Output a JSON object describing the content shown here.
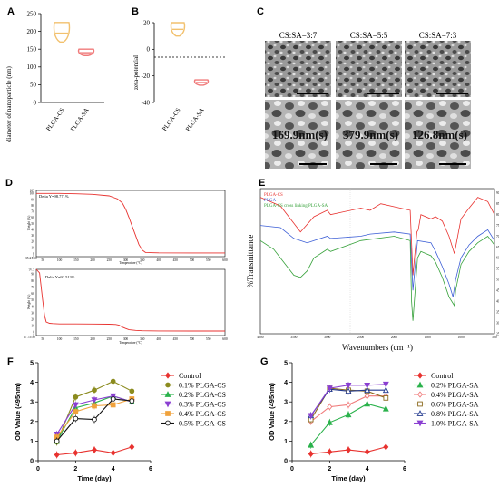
{
  "panels": {
    "A": {
      "label": "A",
      "ylabel": "diameter of nanoparticle (nm)",
      "yticks": [
        "0",
        "50",
        "100",
        "150",
        "200",
        "250"
      ],
      "categories": [
        "PLGA-CS",
        "PLGA-SA"
      ]
    },
    "B": {
      "label": "B",
      "ylabel": "zeta-potential",
      "yticks": [
        "20",
        "0",
        "-20",
        "-40"
      ],
      "categories": [
        "PLGA-CS",
        "PLGA-SA"
      ]
    },
    "C": {
      "label": "C",
      "headers": [
        "CS:SA=3:7",
        "CS:SA=5:5",
        "CS:SA=7:3"
      ],
      "pore_sizes": [
        "169.9nm(s)",
        "379.9nm(s)",
        "126.8nm(s)"
      ]
    },
    "D": {
      "label": "D",
      "top_legend": "Delta Y=98.771%",
      "bottom_legend": "Delta Y=92.513%",
      "ylabel": "Weight (%)",
      "xlabel": "Temperature (°C)",
      "top_y_ticks": [
        "105",
        "100",
        "90",
        "80",
        "70",
        "60",
        "50",
        "40",
        "30",
        "20",
        "10",
        "0",
        "-5"
      ],
      "bottom_y_ticks": [
        "97.5",
        "90",
        "80",
        "70",
        "60",
        "50",
        "40",
        "30",
        "20",
        "10",
        "0",
        "-5"
      ],
      "top_corner": "35.21/50",
      "bottom_corner": "37.75/50",
      "x_ticks": [
        "50",
        "100",
        "150",
        "200",
        "250",
        "300",
        "350",
        "400",
        "450",
        "500",
        "550",
        "600"
      ]
    },
    "E": {
      "label": "E",
      "ylabel": "%Transmittance",
      "xlabel": "Wavenumbers (cm⁻¹)",
      "xticks": [
        "4000",
        "3500",
        "3000",
        "2500",
        "2000",
        "1500",
        "1000",
        "500"
      ],
      "yticks": [
        "90",
        "85",
        "80",
        "75",
        "70",
        "65",
        "60",
        "55",
        "50",
        "45",
        "40",
        "35",
        "30",
        "25"
      ],
      "legend": [
        {
          "name": "PLGA-CS",
          "color": "#e8322f"
        },
        {
          "name": "PLGA",
          "color": "#3d5fd6"
        },
        {
          "name": "PLGA-CS cross linking PLGA-SA",
          "color": "#36a13a"
        }
      ]
    },
    "F": {
      "label": "F"
    },
    "G": {
      "label": "G"
    }
  },
  "chart_data": [
    {
      "type": "violin",
      "panel": "A",
      "ylabel": "diameter of nanoparticle (nm)",
      "ylim": [
        0,
        250
      ],
      "categories": [
        "PLGA-CS",
        "PLGA-SA"
      ],
      "ranges": [
        [
          170,
          225
        ],
        [
          132,
          150
        ]
      ],
      "medians": [
        195,
        140
      ],
      "colors": [
        "#f2c16e",
        "#f07a7a"
      ]
    },
    {
      "type": "violin",
      "panel": "B",
      "ylabel": "zeta-potential",
      "ylim": [
        -40,
        25
      ],
      "categories": [
        "PLGA-CS",
        "PLGA-SA"
      ],
      "ranges": [
        [
          10,
          20
        ],
        [
          -27,
          -23
        ]
      ],
      "medians": [
        15,
        -25
      ],
      "colors": [
        "#f2c16e",
        "#f07a7a"
      ]
    },
    {
      "type": "line",
      "panel": "D-top",
      "xlabel": "Temperature (°C)",
      "ylabel": "Weight (%)",
      "xlim": [
        30,
        600
      ],
      "ylim": [
        -5,
        105
      ],
      "x": [
        30,
        100,
        150,
        200,
        250,
        275,
        290,
        300,
        310,
        320,
        330,
        340,
        350,
        360,
        400,
        500,
        600
      ],
      "y": [
        100,
        100,
        99.5,
        98.5,
        96,
        91,
        84,
        74,
        60,
        45,
        30,
        15,
        6,
        2,
        1.3,
        1.2,
        1.2
      ]
    },
    {
      "type": "line",
      "panel": "D-bottom",
      "xlabel": "Temperature (°C)",
      "ylabel": "Weight (%)",
      "xlim": [
        30,
        600
      ],
      "ylim": [
        -5,
        97.5
      ],
      "x": [
        30,
        40,
        48,
        55,
        60,
        70,
        80,
        100,
        150,
        200,
        250,
        270,
        280,
        290,
        300,
        310,
        330,
        350,
        400,
        500,
        600
      ],
      "y": [
        97.5,
        92,
        55,
        26,
        16,
        14,
        13.5,
        13,
        13,
        12.8,
        12.5,
        12.2,
        11,
        8,
        6,
        4,
        3,
        2.5,
        2.2,
        2,
        2
      ]
    },
    {
      "type": "line",
      "panel": "E",
      "xlabel": "Wavenumbers (cm⁻¹)",
      "ylabel": "%Transmittance",
      "xlim": [
        4000,
        500
      ],
      "ylim": [
        25,
        92
      ],
      "series": [
        {
          "name": "PLGA-CS",
          "x": [
            4000,
            3700,
            3500,
            3400,
            3200,
            3000,
            2950,
            2500,
            2360,
            2200,
            1760,
            1720,
            1660,
            1640,
            1600,
            1450,
            1380,
            1280,
            1180,
            1100,
            1080,
            1000,
            880,
            750,
            600,
            500
          ],
          "y": [
            88,
            84,
            76,
            72,
            79,
            82,
            80,
            83,
            82,
            85,
            82,
            52,
            72,
            73,
            80,
            78,
            79,
            77,
            70,
            62,
            65,
            78,
            83,
            88,
            86,
            80
          ]
        },
        {
          "name": "PLGA",
          "x": [
            4000,
            3700,
            3500,
            3300,
            3000,
            2950,
            2500,
            2360,
            2000,
            1760,
            1720,
            1650,
            1450,
            1380,
            1280,
            1180,
            1120,
            1080,
            1000,
            880,
            750,
            600,
            500
          ],
          "y": [
            75,
            74,
            69,
            67,
            70,
            69,
            70,
            71,
            72,
            71,
            45,
            68,
            67,
            63,
            56,
            48,
            42,
            50,
            60,
            66,
            70,
            73,
            68
          ]
        },
        {
          "name": "PLGA-CS cross linking PLGA-SA",
          "x": [
            4000,
            3800,
            3600,
            3500,
            3400,
            3300,
            3200,
            3000,
            2950,
            2500,
            2000,
            1760,
            1740,
            1720,
            1650,
            1600,
            1450,
            1380,
            1280,
            1180,
            1100,
            1080,
            1000,
            880,
            750,
            600,
            500
          ],
          "y": [
            68,
            64,
            56,
            52,
            51,
            54,
            60,
            64,
            63,
            68,
            70,
            68,
            40,
            31,
            60,
            63,
            61,
            58,
            51,
            42,
            38,
            45,
            57,
            63,
            67,
            70,
            66
          ]
        }
      ],
      "legend": "top-left"
    },
    {
      "type": "line",
      "panel": "F",
      "xlabel": "Time (day)",
      "ylabel": "OD Value (495nm)",
      "xlim": [
        0,
        6
      ],
      "ylim": [
        0,
        5
      ],
      "x": [
        1,
        2,
        3,
        4,
        5
      ],
      "series": [
        {
          "name": "Control",
          "color": "#e8322f",
          "marker": "diamond",
          "y": [
            0.3,
            0.4,
            0.55,
            0.4,
            0.7
          ]
        },
        {
          "name": "0.1% PLGA-CS",
          "color": "#8b8b1e",
          "marker": "circle",
          "y": [
            0.95,
            3.25,
            3.6,
            4.05,
            3.55
          ]
        },
        {
          "name": "0.2% PLGA-CS",
          "color": "#2bb24c",
          "marker": "triangle",
          "y": [
            1.0,
            2.7,
            2.95,
            3.3,
            3.0
          ]
        },
        {
          "name": "0.3% PLGA-CS",
          "color": "#8a3fd1",
          "marker": "triangle-down",
          "y": [
            1.35,
            2.85,
            3.1,
            3.3,
            3.0
          ]
        },
        {
          "name": "0.4% PLGA-CS",
          "color": "#f0a23c",
          "marker": "square",
          "y": [
            1.2,
            2.5,
            2.8,
            2.85,
            3.15
          ]
        },
        {
          "name": "0.5% PLGA-CS",
          "color": "#111111",
          "marker": "circle-open",
          "y": [
            1.0,
            2.15,
            2.1,
            3.15,
            3.05
          ]
        }
      ]
    },
    {
      "type": "line",
      "panel": "G",
      "xlabel": "Time (day)",
      "ylabel": "OD Value (495nm)",
      "xlim": [
        0,
        6
      ],
      "ylim": [
        0,
        5
      ],
      "x": [
        1,
        2,
        3,
        4,
        5
      ],
      "series": [
        {
          "name": "Control",
          "color": "#e8322f",
          "marker": "diamond",
          "y": [
            0.35,
            0.45,
            0.55,
            0.45,
            0.7
          ]
        },
        {
          "name": "0.2% PLGA-SA",
          "color": "#2bb24c",
          "marker": "triangle",
          "y": [
            0.8,
            1.95,
            2.35,
            2.9,
            2.65
          ]
        },
        {
          "name": "0.4% PLGA-SA",
          "color": "#f07a7a",
          "marker": "diamond-open",
          "y": [
            2.0,
            2.75,
            2.85,
            3.3,
            3.3
          ]
        },
        {
          "name": "0.6% PLGA-SA",
          "color": "#8b6a1e",
          "marker": "square-open",
          "y": [
            2.1,
            3.7,
            3.6,
            3.55,
            3.2
          ]
        },
        {
          "name": "0.8% PLGA-SA",
          "color": "#233a8f",
          "marker": "triangle-open",
          "y": [
            2.3,
            3.65,
            3.55,
            3.6,
            3.6
          ]
        },
        {
          "name": "1.0% PLGA-SA",
          "color": "#8a3fd1",
          "marker": "triangle-down",
          "y": [
            2.3,
            3.7,
            3.85,
            3.85,
            3.9
          ]
        }
      ]
    }
  ]
}
